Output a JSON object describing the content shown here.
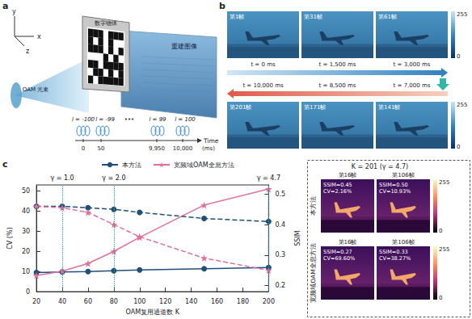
{
  "panels": {
    "a": {
      "label": "a",
      "axes": [
        "x",
        "y",
        "z"
      ],
      "object_label": "数字物体",
      "image_label": "重建图像",
      "beam_label": "OAM 光束",
      "modes": [
        "l = -100",
        "l = -99",
        "•••",
        "l = 99",
        "l = 100"
      ],
      "time_axis": {
        "title": "Time",
        "ticks": [
          "0",
          "50",
          "9,950",
          "10,000"
        ],
        "unit": "(ms)"
      }
    },
    "b": {
      "label": "b",
      "rows": [
        [
          {
            "frame": "第1帧",
            "time": "t = 0 ms"
          },
          {
            "frame": "第31帧",
            "time": "t = 1,500 ms"
          },
          {
            "frame": "第61帧",
            "time": "t = 3,000 ms"
          }
        ],
        [
          {
            "frame": "第201帧",
            "time": "t = 10,000 ms"
          },
          {
            "frame": "第171帧",
            "time": "t = 8,500 ms"
          },
          {
            "frame": "第141帧",
            "time": "t = 7,000 ms"
          }
        ]
      ],
      "colorbar": {
        "max": 255,
        "min": 0
      }
    },
    "c": {
      "label": "c"
    },
    "c_images": {
      "title": "K = 201 (γ = 4.7)",
      "rows": [
        {
          "label": "本方法",
          "cells": [
            {
              "frame": "第16帧",
              "ssim": "SSIM=0.45",
              "cv": "CV=2.16%"
            },
            {
              "frame": "第106帧",
              "ssim": "SSIM=0.50",
              "cv": "CV=10.93%"
            }
          ]
        },
        {
          "label": "宽频域OAM全息方法",
          "cells": [
            {
              "frame": "第16帧",
              "ssim": "SSIM=0.27",
              "cv": "CV=69.60%"
            },
            {
              "frame": "第106帧",
              "ssim": "SSIM=0.33",
              "cv": "CV=38.27%"
            }
          ]
        }
      ],
      "colorbar": {
        "max": 255,
        "min": 0
      }
    }
  },
  "chart_data": {
    "type": "line",
    "xlabel": "OAM复用通道数 K",
    "ylabel": "CV (%)",
    "y2label": "SSIM",
    "x": [
      20,
      40,
      60,
      80,
      100,
      150,
      200
    ],
    "xlim": [
      20,
      200
    ],
    "xticks": [
      20,
      40,
      60,
      80,
      100,
      120,
      140,
      160,
      180,
      200
    ],
    "ylim": [
      0,
      53
    ],
    "yticks": [
      0,
      10,
      20,
      30,
      40,
      50
    ],
    "y2lim": [
      0.18,
      0.53
    ],
    "y2ticks": [
      0.2,
      0.3,
      0.4,
      0.5
    ],
    "grid": false,
    "legend": "top",
    "series": [
      {
        "name": "本方法",
        "color": "#1f4e79",
        "marker": "circle",
        "line_style": "solid",
        "values": [
          9.5,
          9.8,
          10.0,
          10.4,
          10.8,
          11.4,
          12.0
        ]
      },
      {
        "name": "宽频域OAM全息方法",
        "color": "#e0709a",
        "marker": "star",
        "line_style": "solid",
        "values": [
          8.0,
          10.2,
          14.0,
          20.0,
          27.0,
          43.0,
          51.0
        ]
      },
      {
        "name": "本方法",
        "color": "#1f4e79",
        "marker": "circle",
        "line_style": "dashed",
        "axis": "y2",
        "values": [
          0.46,
          0.46,
          0.455,
          0.45,
          0.44,
          0.42,
          0.41
        ]
      },
      {
        "name": "宽频域OAM全息方法",
        "color": "#e0709a",
        "marker": "star",
        "line_style": "dashed",
        "axis": "y2",
        "values": [
          0.46,
          0.455,
          0.44,
          0.4,
          0.36,
          0.29,
          0.25
        ]
      }
    ],
    "annotations": [
      {
        "x": 40,
        "text": "γ = 1.0"
      },
      {
        "x": 80,
        "text": "γ = 2.0"
      },
      {
        "x": 200,
        "text": "γ = 4.7"
      }
    ]
  }
}
